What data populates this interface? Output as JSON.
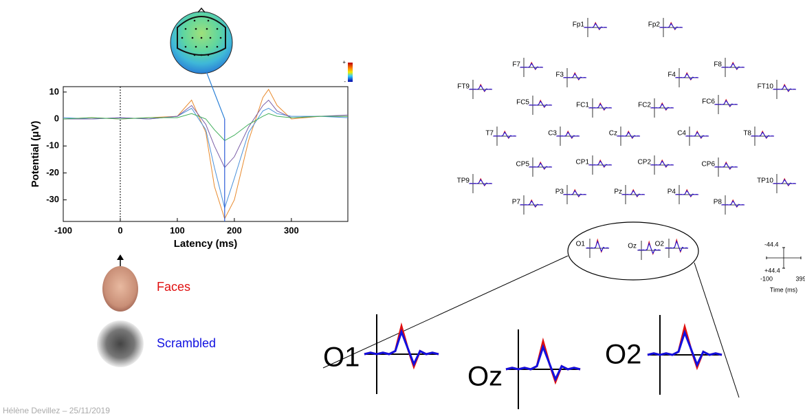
{
  "chart_data": {
    "type": "line",
    "xlabel": "Latency (ms)",
    "ylabel": "Potential (μV)",
    "x": [
      -100,
      -50,
      0,
      50,
      100,
      125,
      150,
      165,
      183,
      200,
      225,
      250,
      260,
      275,
      300,
      350,
      399
    ],
    "series": [
      {
        "color": "#e8892b",
        "values": [
          0,
          0.5,
          0,
          0.5,
          1,
          7,
          -5,
          -25,
          -37,
          -30,
          -8,
          8,
          11,
          5,
          0,
          1,
          1
        ]
      },
      {
        "color": "#4a90d9",
        "values": [
          0.5,
          0,
          0.5,
          0,
          1,
          4,
          -4,
          -18,
          -33,
          -22,
          -5,
          3,
          4,
          2,
          1,
          1,
          0.5
        ]
      },
      {
        "color": "#7b5ea7",
        "values": [
          0,
          0,
          0.5,
          0,
          1,
          5,
          -2,
          -10,
          -18,
          -14,
          -3,
          5,
          7,
          3,
          0.5,
          1,
          1.5
        ]
      },
      {
        "color": "#3fae5a",
        "values": [
          0,
          0.5,
          0,
          0.5,
          0.5,
          2,
          0,
          -4,
          -8,
          -6,
          -2,
          1,
          2,
          1,
          0.5,
          1,
          1
        ]
      }
    ],
    "xlim": [
      -100,
      399
    ],
    "ylim": [
      -38,
      12
    ],
    "xticks": [
      -100,
      0,
      100,
      200,
      300
    ],
    "yticks": [
      -30,
      -20,
      -10,
      0,
      10
    ],
    "cursor": 183
  },
  "colorbar": {
    "top": "+",
    "bottom": "-"
  },
  "stimuli": {
    "faces": "Faces",
    "scrambled": "Scrambled"
  },
  "footer": "Hélène Devillez – 25/11/2019",
  "channels": [
    "Fp1",
    "Fp2",
    "F7",
    "F8",
    "F3",
    "F4",
    "FT9",
    "FT10",
    "FC5",
    "FC1",
    "FC2",
    "FC6",
    "T7",
    "C3",
    "Cz",
    "C4",
    "T8",
    "CP5",
    "CP1",
    "CP2",
    "CP6",
    "TP9",
    "TP10",
    "P3",
    "Pz",
    "P4",
    "P7",
    "P8"
  ],
  "occipital": [
    "O1",
    "Oz",
    "O2"
  ],
  "scale": {
    "yticks": [
      -44.4,
      {
        "value": 44.4,
        "label": "+44.4"
      }
    ],
    "xticks": [
      -100,
      399
    ],
    "xlabel": "Time (ms)"
  }
}
